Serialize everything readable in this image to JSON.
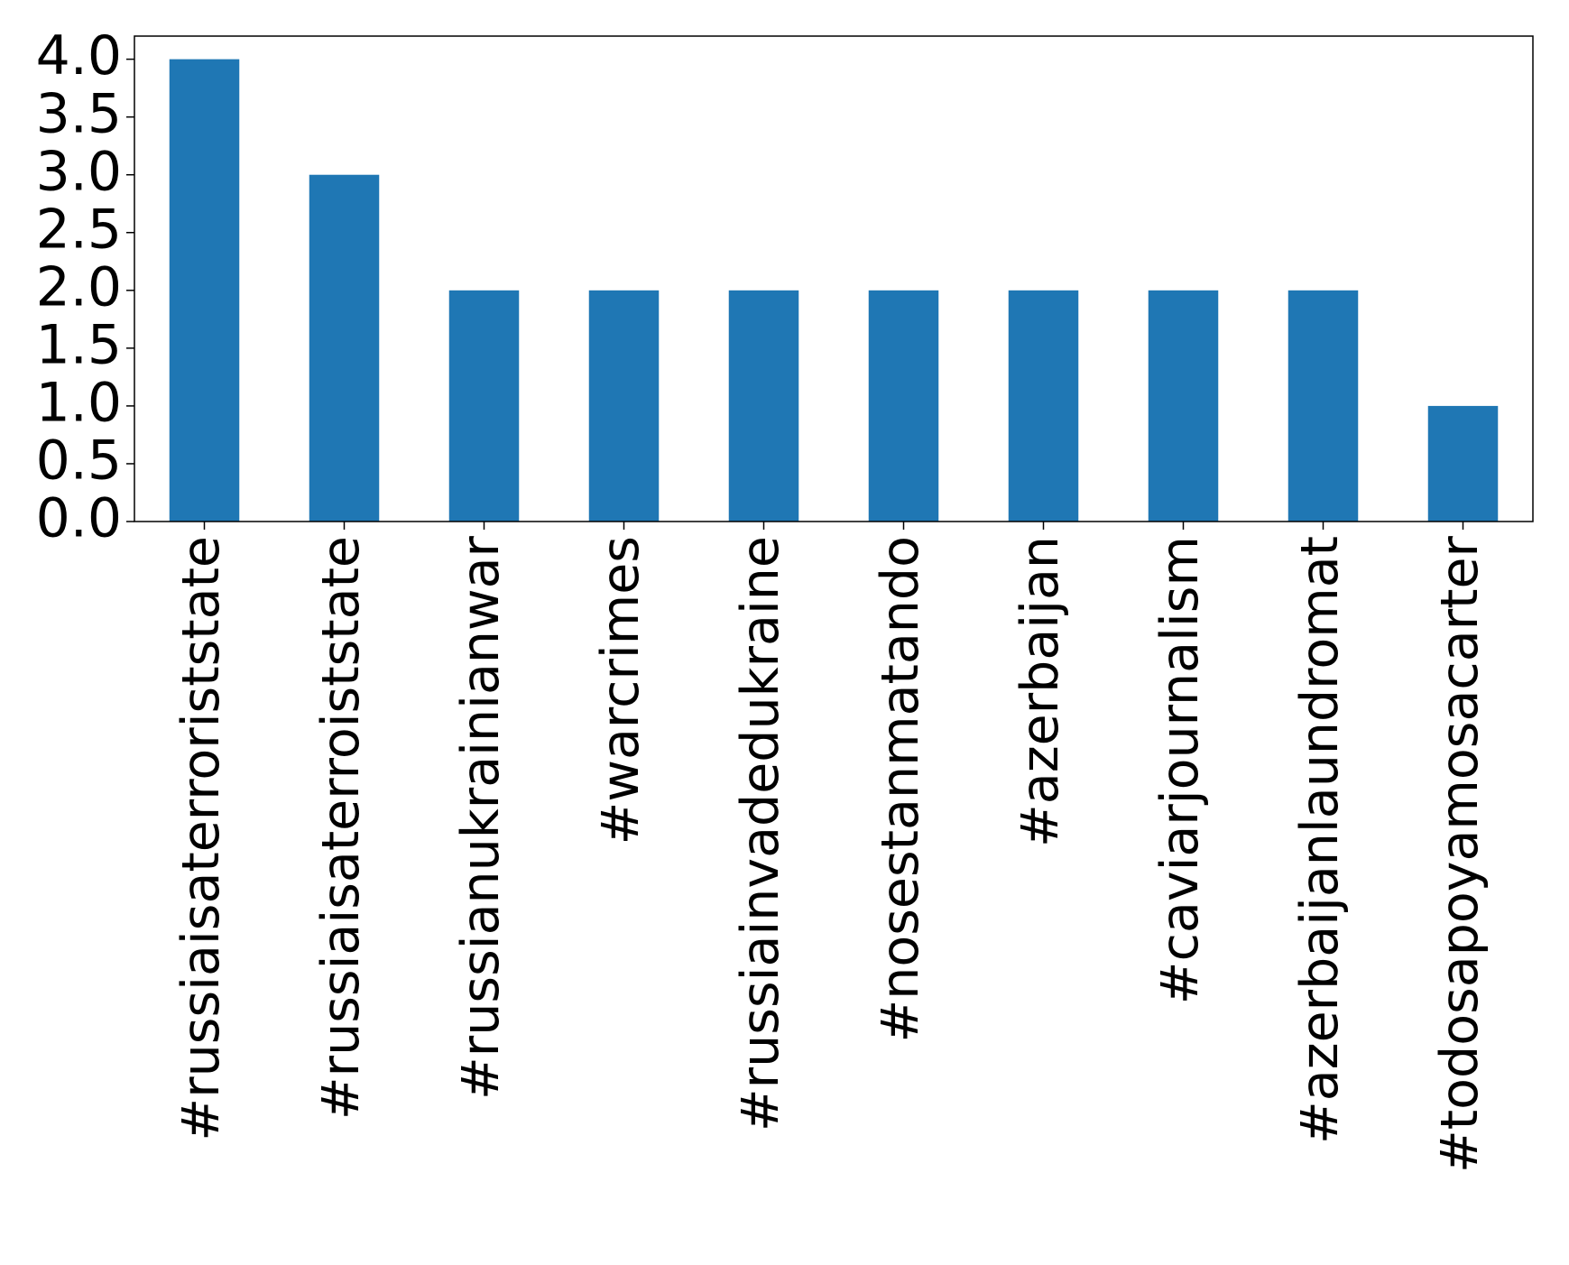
{
  "chart_data": {
    "type": "bar",
    "categories": [
      "#russiaisaterroriststate",
      "#russiaisaterroiststate",
      "#russianukrainianwar",
      "#warcrimes",
      "#russiainvadedukraine",
      "#nosestanmatando",
      "#azerbaijan",
      "#caviarjournalism",
      "#azerbaijanlaundromat",
      "#todosapoyamosacarter"
    ],
    "values": [
      4,
      3,
      2,
      2,
      2,
      2,
      2,
      2,
      2,
      1
    ],
    "color": "#1f77b4",
    "ylim": [
      0,
      4.2
    ],
    "yticks": [
      {
        "value": 0,
        "label": "0.0"
      },
      {
        "value": 0.5,
        "label": "0.5"
      },
      {
        "value": 1,
        "label": "1.0"
      },
      {
        "value": 1.5,
        "label": "1.5"
      },
      {
        "value": 2,
        "label": "2.0"
      },
      {
        "value": 2.5,
        "label": "2.5"
      },
      {
        "value": 3,
        "label": "3.0"
      },
      {
        "value": 3.5,
        "label": "3.5"
      },
      {
        "value": 4,
        "label": "4.0"
      }
    ]
  }
}
